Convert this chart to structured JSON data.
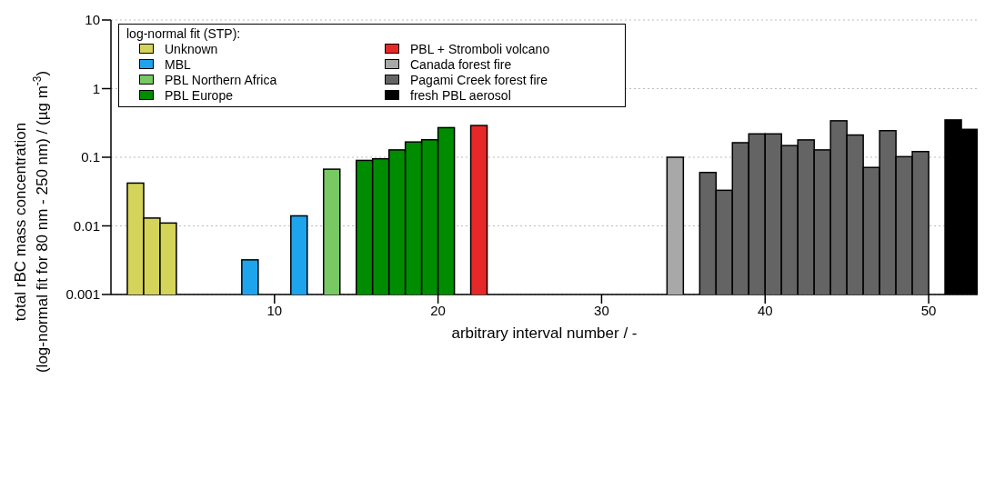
{
  "chart_data": {
    "type": "bar",
    "xlabel": "arbitrary interval number / -",
    "ylabel": "total rBC mass concentration\n(log-normal fit for 80 nm - 250 nm)  / (µg m$^{-3}$)",
    "legend_title": "log-normal fit (STP):",
    "legend": "top left",
    "log": "y",
    "grid": "y",
    "xlim": [
      0,
      53
    ],
    "xticks": [
      10,
      20,
      30,
      40,
      50
    ],
    "ylim": [
      0.001,
      10
    ],
    "yticks": [
      0.001,
      0.01,
      0.1,
      1,
      10
    ],
    "series": [
      {
        "name": "Unknown",
        "color": "#d4d45a",
        "x": [
          1.5,
          2.5,
          3.5
        ],
        "values": [
          0.042,
          0.013,
          0.011
        ]
      },
      {
        "name": "MBL",
        "color": "#1ea4ec",
        "x": [
          8.5,
          11.5
        ],
        "values": [
          0.0032,
          0.014
        ]
      },
      {
        "name": "PBL Northern Africa",
        "color": "#78c864",
        "x": [
          13.5
        ],
        "values": [
          0.067
        ]
      },
      {
        "name": "PBL Europe",
        "color": "#008c00",
        "x": [
          15.5,
          16.5,
          17.5,
          18.5,
          19.5,
          20.5
        ],
        "values": [
          0.09,
          0.095,
          0.128,
          0.167,
          0.18,
          0.27
        ]
      },
      {
        "name": "PBL + Stromboli volcano",
        "color": "#e62828",
        "x": [
          22.5
        ],
        "values": [
          0.29
        ]
      },
      {
        "name": "Canada forest fire",
        "color": "#a8a8a8",
        "x": [
          34.5
        ],
        "values": [
          0.1
        ]
      },
      {
        "name": "Pagami Creek forest fire",
        "color": "#646464",
        "x": [
          36.5,
          37.5,
          38.5,
          39.5,
          40.5,
          41.5,
          42.5,
          43.5,
          44.5,
          45.5,
          46.5,
          47.5,
          48.5,
          49.5
        ],
        "values": [
          0.06,
          0.033,
          0.163,
          0.219,
          0.219,
          0.148,
          0.179,
          0.128,
          0.34,
          0.211,
          0.071,
          0.244,
          0.102,
          0.121
        ]
      },
      {
        "name": "fresh PBL aerosol",
        "color": "#000000",
        "x": [
          51.5,
          52.5
        ],
        "values": [
          0.35,
          0.255
        ]
      }
    ]
  }
}
